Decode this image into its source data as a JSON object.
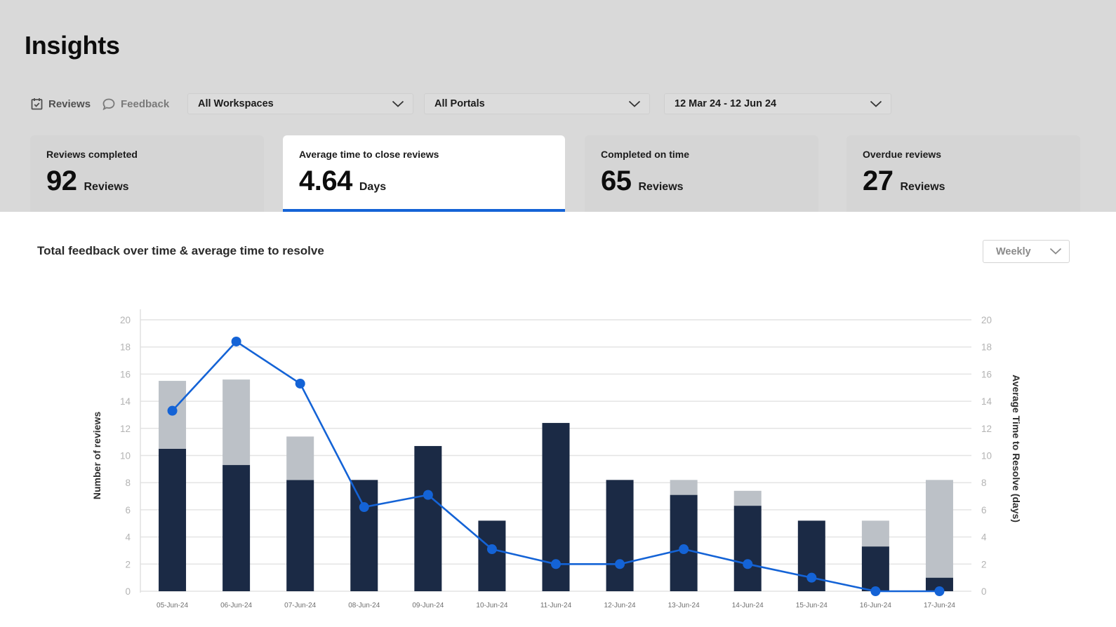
{
  "page": {
    "title": "Insights"
  },
  "tabs": [
    {
      "label": "Reviews",
      "icon": "calendar-check-icon"
    },
    {
      "label": "Feedback",
      "icon": "chat-bubble-icon"
    }
  ],
  "filters": {
    "workspaces": "All Workspaces",
    "portals": "All Portals",
    "date_range": "12 Mar 24 - 12 Jun 24"
  },
  "cards": [
    {
      "label": "Reviews completed",
      "value": "92",
      "unit": "Reviews"
    },
    {
      "label": "Average time to close reviews",
      "value": "4.64",
      "unit": "Days"
    },
    {
      "label": "Completed on time",
      "value": "65",
      "unit": "Reviews"
    },
    {
      "label": "Overdue reviews",
      "value": "27",
      "unit": "Reviews"
    }
  ],
  "chart_section": {
    "title": "Total feedback over time & average time to resolve",
    "period": "Weekly"
  },
  "colors": {
    "accent": "#1463d6",
    "bar_primary": "#1b2a45",
    "bar_secondary": "#bcc1c7"
  },
  "chart_data": {
    "type": "bar",
    "stacked": true,
    "categories": [
      "05-Jun-24",
      "06-Jun-24",
      "07-Jun-24",
      "08-Jun-24",
      "09-Jun-24",
      "10-Jun-24",
      "11-Jun-24",
      "12-Jun-24",
      "13-Jun-24",
      "14-Jun-24",
      "15-Jun-24",
      "16-Jun-24",
      "17-Jun-24"
    ],
    "series": [
      {
        "type": "bar",
        "color": "#1b2a45",
        "values": [
          10.5,
          9.3,
          8.2,
          8.2,
          10.7,
          5.2,
          12.4,
          8.2,
          7.1,
          6.3,
          5.2,
          3.3,
          1.0
        ]
      },
      {
        "type": "bar",
        "color": "#bcc1c7",
        "values": [
          5.0,
          6.3,
          3.2,
          0,
          0,
          0,
          0,
          0,
          1.1,
          1.1,
          0,
          1.9,
          7.2
        ]
      },
      {
        "type": "line",
        "color": "#1463d6",
        "axis": "right",
        "values": [
          13.3,
          18.4,
          15.3,
          6.2,
          7.1,
          3.1,
          2.0,
          2.0,
          3.1,
          2.0,
          1.0,
          0,
          0
        ]
      }
    ],
    "ylabel": "Number of reviews",
    "y2label": "Average Time to Resolve (days)",
    "ylim": [
      0,
      20
    ],
    "y2lim": [
      0,
      20
    ],
    "yticks": [
      "0",
      "2",
      "4",
      "6",
      "8",
      "10",
      "12",
      "14",
      "16",
      "18",
      "20"
    ],
    "grid": true
  }
}
